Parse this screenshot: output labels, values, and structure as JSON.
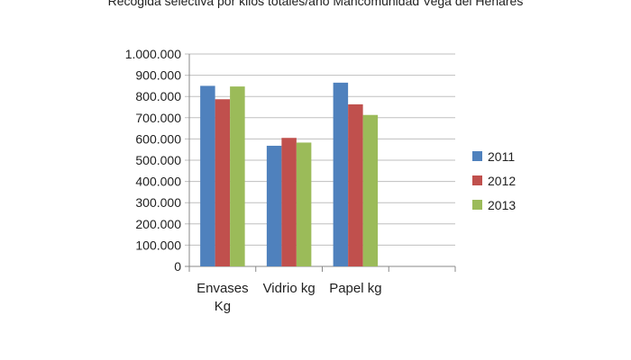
{
  "chart_data": {
    "type": "bar",
    "title": "Recogida selectiva por kilos totales/año Mancomunidad Vega del Henares",
    "categories": [
      [
        "Envases",
        "Kg"
      ],
      [
        "Vidrio kg"
      ],
      [
        "Papel kg"
      ],
      [
        ""
      ]
    ],
    "series": [
      {
        "name": "2011",
        "color": "#4f81bd",
        "values": [
          850000,
          568000,
          865000,
          null
        ]
      },
      {
        "name": "2012",
        "color": "#c0504d",
        "values": [
          787000,
          605000,
          763000,
          null
        ]
      },
      {
        "name": "2013",
        "color": "#9bbb59",
        "values": [
          847000,
          583000,
          713000,
          null
        ]
      }
    ],
    "ylim": [
      0,
      1000000
    ],
    "yticks": [
      "0",
      "100.000",
      "200.000",
      "300.000",
      "400.000",
      "500.000",
      "600.000",
      "700.000",
      "800.000",
      "900.000",
      "1.000.000"
    ],
    "grid": true,
    "legend": "right"
  }
}
